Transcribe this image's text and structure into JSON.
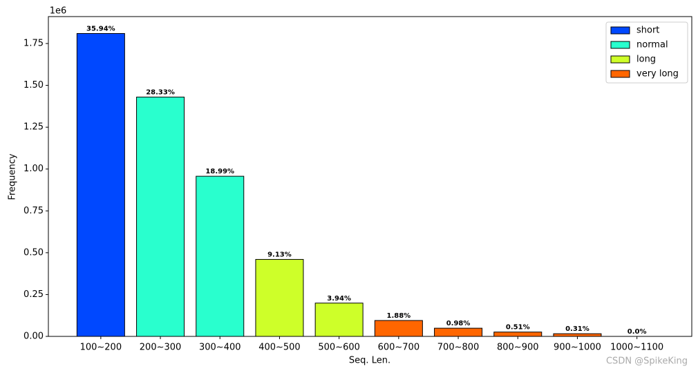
{
  "chart_data": {
    "type": "bar",
    "x_label": "Seq. Len.",
    "y_label": "Frequency",
    "y_offset_label": "1e6",
    "categories": [
      "100~200",
      "200~300",
      "300~400",
      "400~500",
      "500~600",
      "600~700",
      "700~800",
      "800~900",
      "900~1000",
      "1000~1100"
    ],
    "series": [
      {
        "name": "short",
        "color": "#0048ff",
        "values": [
          1.81,
          null,
          null,
          null,
          null,
          null,
          null,
          null,
          null,
          null
        ]
      },
      {
        "name": "normal",
        "color": "#29ffce",
        "values": [
          null,
          1.43,
          0.957,
          null,
          null,
          null,
          null,
          null,
          null,
          null
        ]
      },
      {
        "name": "long",
        "color": "#ceff29",
        "values": [
          null,
          null,
          null,
          0.46,
          0.199,
          null,
          null,
          null,
          null,
          null
        ]
      },
      {
        "name": "very long",
        "color": "#ff6600",
        "values": [
          null,
          null,
          null,
          null,
          null,
          0.095,
          0.049,
          0.026,
          0.016,
          0.0
        ]
      }
    ],
    "data_labels": [
      "35.94%",
      "28.33%",
      "18.99%",
      "9.13%",
      "3.94%",
      "1.88%",
      "0.98%",
      "0.51%",
      "0.31%",
      "0.0%"
    ],
    "ylim": [
      0,
      1.911
    ],
    "yticks": [
      {
        "value": 0,
        "label": "0.00"
      },
      0.25,
      {
        "value": 0.5,
        "label": "0.50"
      },
      0.75,
      {
        "value": 1,
        "label": "1.00"
      },
      1.25,
      {
        "value": 1.5,
        "label": "1.50"
      },
      1.75
    ],
    "legend": "upper right",
    "watermark": "CSDN @SpikeKing"
  }
}
